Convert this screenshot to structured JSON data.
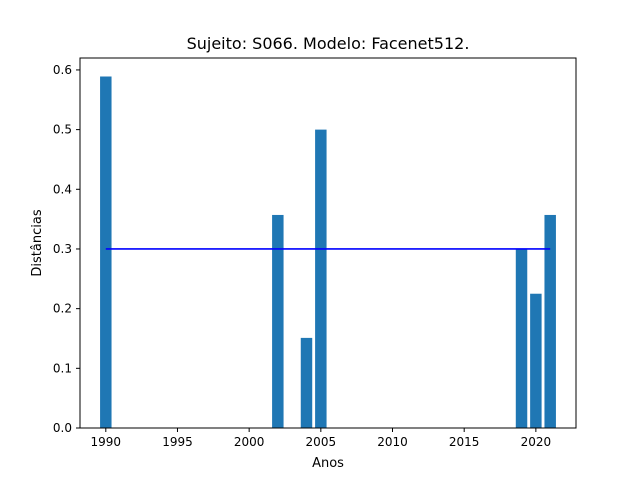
{
  "chart_data": {
    "type": "bar",
    "title": "Sujeito: S066. Modelo: Facenet512.",
    "xlabel": "Anos",
    "ylabel": "Distâncias",
    "xlim": [
      1988.2,
      2022.8
    ],
    "ylim": [
      0,
      0.62
    ],
    "x_ticks": [
      1990,
      1995,
      2000,
      2005,
      2010,
      2015,
      2020
    ],
    "y_ticks": [
      0.0,
      0.1,
      0.2,
      0.3,
      0.4,
      0.5,
      0.6
    ],
    "x_tick_labels": [
      "1990",
      "1995",
      "2000",
      "2005",
      "2010",
      "2015",
      "2020"
    ],
    "y_tick_labels": [
      "0.0",
      "0.1",
      "0.2",
      "0.3",
      "0.4",
      "0.5",
      "0.6"
    ],
    "bar_width": 0.8,
    "series": [
      {
        "x": [
          1990,
          2002,
          2004,
          2005,
          2019,
          2020,
          2021
        ],
        "values": [
          0.589,
          0.357,
          0.151,
          0.5,
          0.3,
          0.225,
          0.357
        ],
        "color": "#1f77b4"
      }
    ],
    "threshold_line": {
      "value": 0.3,
      "x_range": [
        1990,
        2021
      ],
      "color": "#0000ff"
    },
    "grid": false,
    "legend": "none"
  }
}
